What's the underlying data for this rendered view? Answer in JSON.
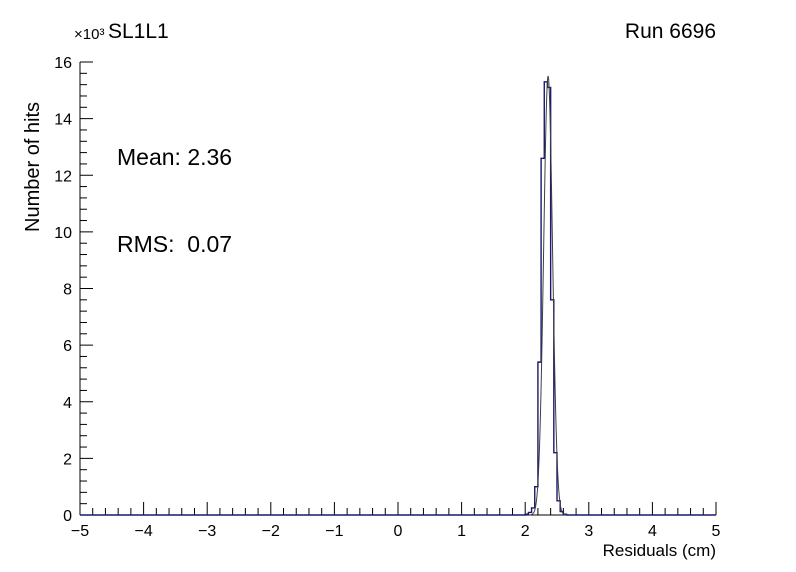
{
  "figure": {
    "title": "SL1L1",
    "run_label": "Run 6696",
    "y_exponent": "×10³",
    "y_axis_title": "Number of hits",
    "x_axis_title": "Residuals (cm)",
    "stats": {
      "mean_line": "Mean: 2.36",
      "rms_line": "RMS:  0.07"
    }
  },
  "chart_data": {
    "type": "bar",
    "subtype": "step-histogram",
    "title": "SL1L1",
    "annotation": "Run 6696",
    "xlabel": "Residuals (cm)",
    "ylabel": "Number of hits",
    "y_scale_label": "×10³",
    "xlim": [
      -5,
      5
    ],
    "ylim": [
      0,
      16000
    ],
    "x_major_ticks": [
      -5,
      -4,
      -3,
      -2,
      -1,
      0,
      1,
      2,
      3,
      4,
      5
    ],
    "x_minor_step": 0.2,
    "y_major_ticks": [
      0,
      2,
      4,
      6,
      8,
      10,
      12,
      14,
      16
    ],
    "y_major_step": 2000,
    "y_minor_step": 400,
    "y_tick_multiplier": 1000,
    "grid": false,
    "legend": false,
    "bin_width": 0.05,
    "bins": [
      {
        "x": 2.0,
        "count": 30
      },
      {
        "x": 2.05,
        "count": 90
      },
      {
        "x": 2.1,
        "count": 250
      },
      {
        "x": 2.15,
        "count": 1000
      },
      {
        "x": 2.2,
        "count": 5400
      },
      {
        "x": 2.25,
        "count": 12600
      },
      {
        "x": 2.3,
        "count": 15300
      },
      {
        "x": 2.35,
        "count": 15100
      },
      {
        "x": 2.4,
        "count": 7600
      },
      {
        "x": 2.45,
        "count": 2200
      },
      {
        "x": 2.5,
        "count": 500
      },
      {
        "x": 2.55,
        "count": 120
      },
      {
        "x": 2.6,
        "count": 30
      }
    ],
    "stats": {
      "mean": 2.36,
      "rms": 0.07
    },
    "fit": {
      "type": "gaussian",
      "mean": 2.36,
      "sigma": 0.07,
      "amplitude": 15500
    },
    "histogram_color": "#191970",
    "fit_color": "#3f3f3f",
    "axis_color": "#000000"
  }
}
